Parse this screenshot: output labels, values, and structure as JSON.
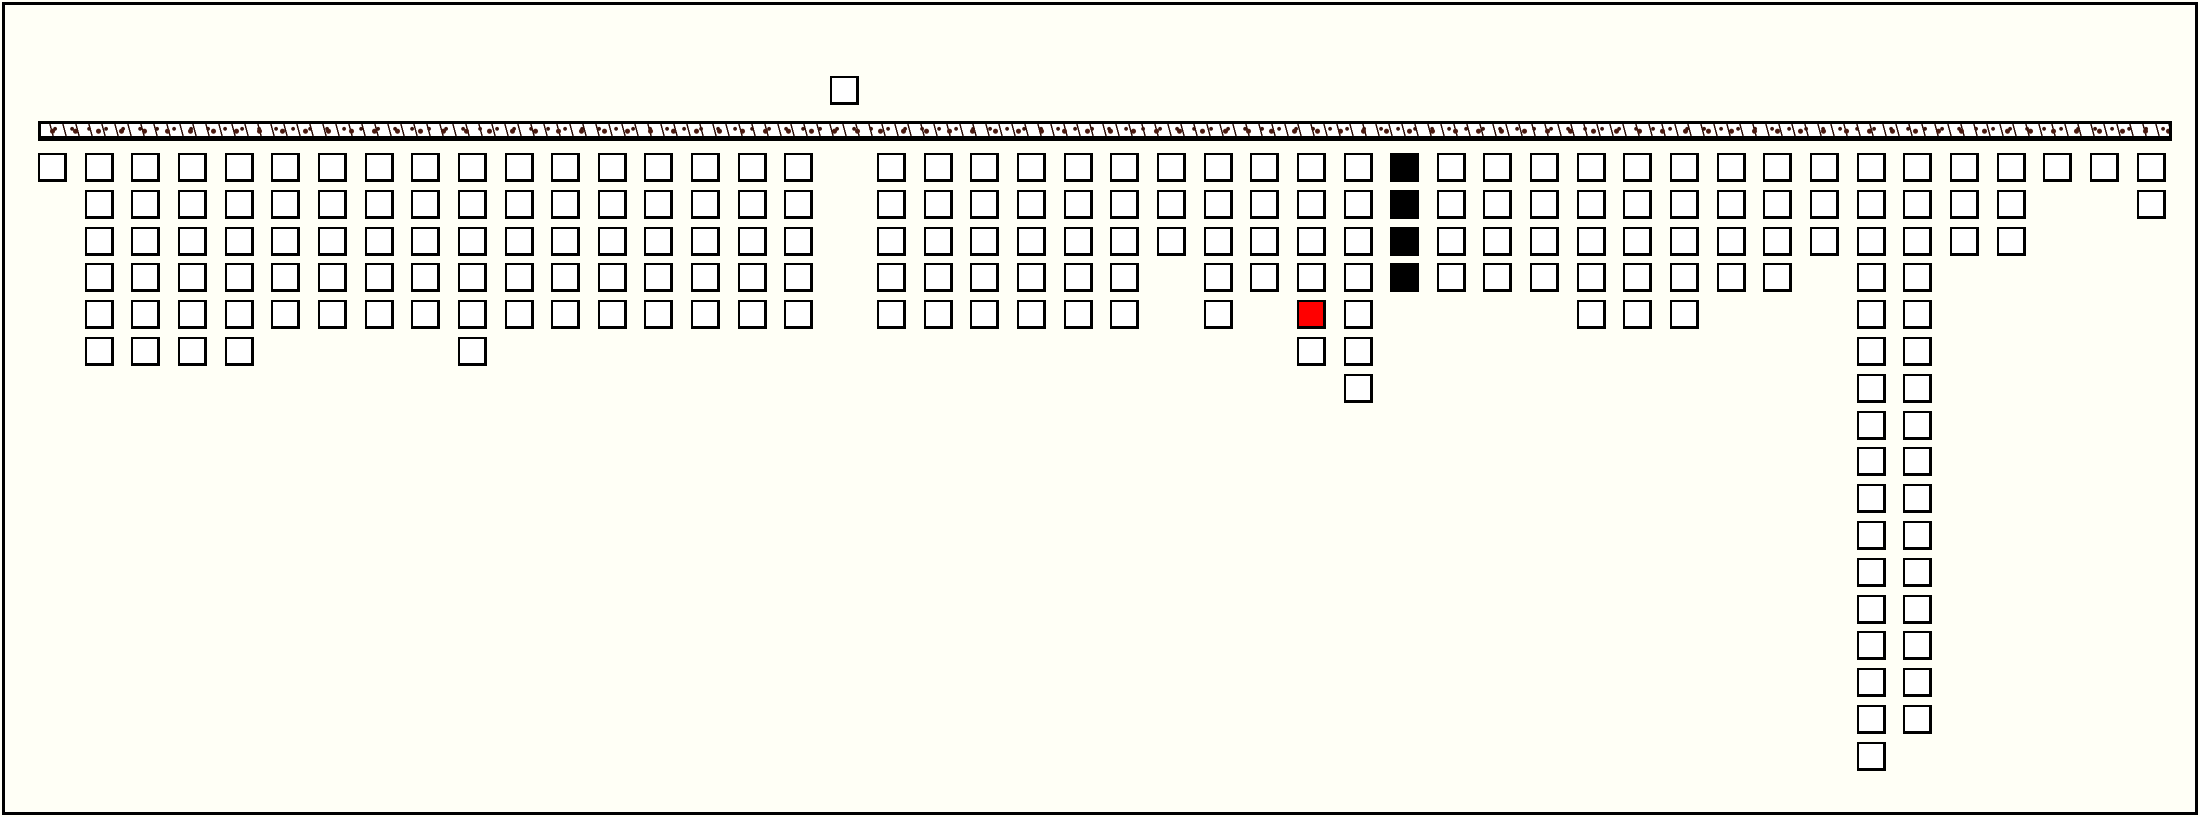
{
  "game": {
    "stock": {
      "count": 1,
      "face": "blank"
    },
    "foundation_bar": {
      "texture": "brown-speckled",
      "color": "#4a1a10"
    },
    "left_group": [
      {
        "cards": 1
      },
      {
        "cards": 6
      },
      {
        "cards": 6
      },
      {
        "cards": 6
      },
      {
        "cards": 6
      },
      {
        "cards": 5
      },
      {
        "cards": 5
      },
      {
        "cards": 5
      },
      {
        "cards": 5
      },
      {
        "cards": 6
      },
      {
        "cards": 5
      },
      {
        "cards": 5
      },
      {
        "cards": 5
      },
      {
        "cards": 5
      },
      {
        "cards": 5
      },
      {
        "cards": 5
      },
      {
        "cards": 5
      }
    ],
    "right_group": [
      {
        "cards": 5
      },
      {
        "cards": 5
      },
      {
        "cards": 5
      },
      {
        "cards": 5
      },
      {
        "cards": 5
      },
      {
        "cards": 5
      },
      {
        "cards": 3
      },
      {
        "cards": 5
      },
      {
        "cards": 4
      },
      {
        "cards": 6,
        "highlight": {
          "index": 4,
          "color": "#ff0000"
        }
      },
      {
        "cards": 7
      },
      {
        "cards": 4,
        "fill": "#000000"
      },
      {
        "cards": 4
      },
      {
        "cards": 4
      },
      {
        "cards": 4
      },
      {
        "cards": 5
      },
      {
        "cards": 5
      },
      {
        "cards": 5
      },
      {
        "cards": 4
      },
      {
        "cards": 4
      },
      {
        "cards": 3
      },
      {
        "cards": 17
      },
      {
        "cards": 16
      },
      {
        "cards": 3
      },
      {
        "cards": 3
      },
      {
        "cards": 1
      },
      {
        "cards": 1
      },
      {
        "cards": 2
      }
    ]
  }
}
